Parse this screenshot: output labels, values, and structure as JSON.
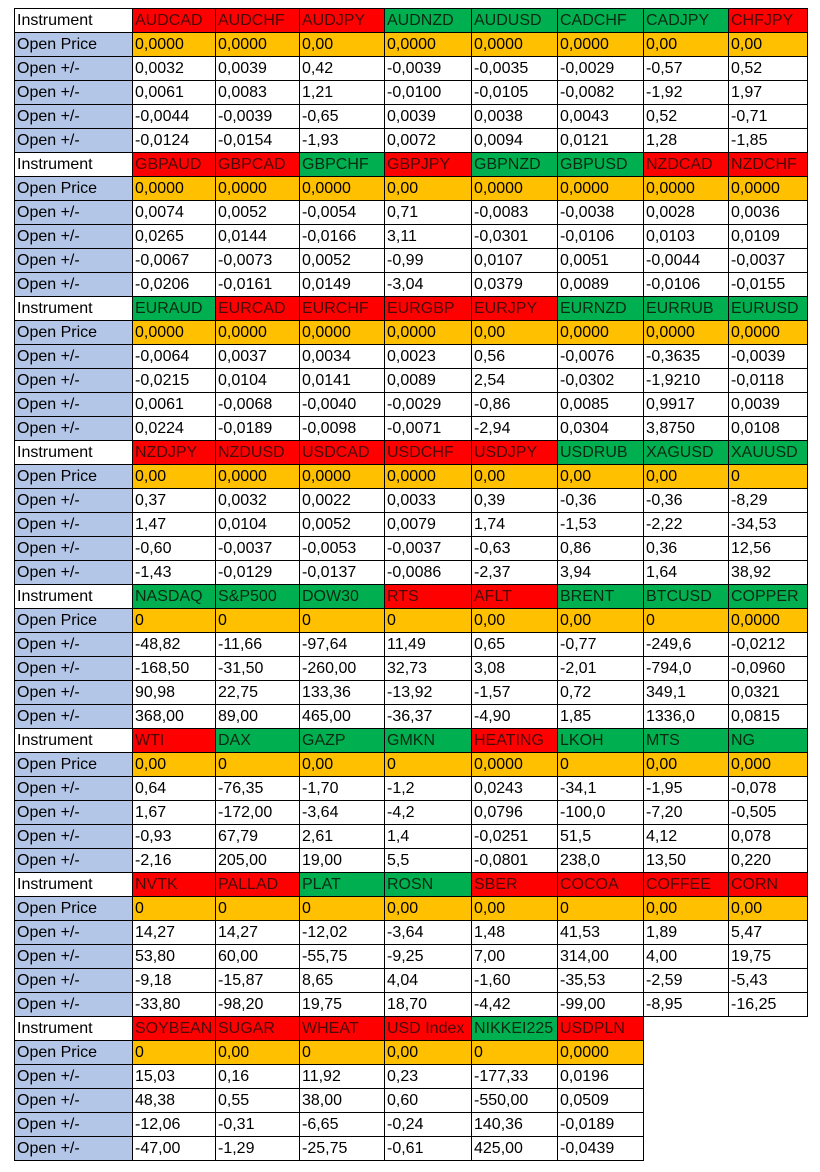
{
  "blocks": [
    {
      "label": "Instrument",
      "instruments": [
        {
          "name": "AUDCAD",
          "color": "#ff0000"
        },
        {
          "name": "AUDCHF",
          "color": "#ff0000"
        },
        {
          "name": "AUDJPY",
          "color": "#ff0000"
        },
        {
          "name": "AUDNZD",
          "color": "#00b050"
        },
        {
          "name": "AUDUSD",
          "color": "#00b050"
        },
        {
          "name": "CADCHF",
          "color": "#00b050"
        },
        {
          "name": "CADJPY",
          "color": "#00b050"
        },
        {
          "name": "CHFJPY",
          "color": "#ff0000"
        }
      ],
      "rows": [
        {
          "label": "Open Price",
          "cells": [
            "0,0000",
            "0,0000",
            "0,00",
            "0,0000",
            "0,0000",
            "0,0000",
            "0,00",
            "0,00"
          ]
        },
        {
          "label": "Open +/-",
          "cells": [
            "0,0032",
            "0,0039",
            "0,42",
            "-0,0039",
            "-0,0035",
            "-0,0029",
            "-0,57",
            "0,52"
          ]
        },
        {
          "label": "Open +/-",
          "cells": [
            "0,0061",
            "0,0083",
            "1,21",
            "-0,0100",
            "-0,0105",
            "-0,0082",
            "-1,92",
            "1,97"
          ]
        },
        {
          "label": "Open +/-",
          "cells": [
            "-0,0044",
            "-0,0039",
            "-0,65",
            "0,0039",
            "0,0038",
            "0,0043",
            "0,52",
            "-0,71"
          ]
        },
        {
          "label": "Open +/-",
          "cells": [
            "-0,0124",
            "-0,0154",
            "-1,93",
            "0,0072",
            "0,0094",
            "0,0121",
            "1,28",
            "-1,85"
          ]
        }
      ]
    },
    {
      "label": "Instrument",
      "instruments": [
        {
          "name": "GBPAUD",
          "color": "#ff0000"
        },
        {
          "name": "GBPCAD",
          "color": "#ff0000"
        },
        {
          "name": "GBPCHF",
          "color": "#00b050"
        },
        {
          "name": "GBPJPY",
          "color": "#ff0000"
        },
        {
          "name": "GBPNZD",
          "color": "#00b050"
        },
        {
          "name": "GBPUSD",
          "color": "#00b050"
        },
        {
          "name": "NZDCAD",
          "color": "#ff0000"
        },
        {
          "name": "NZDCHF",
          "color": "#ff0000"
        }
      ],
      "rows": [
        {
          "label": "Open Price",
          "cells": [
            "0,0000",
            "0,0000",
            "0,0000",
            "0,00",
            "0,0000",
            "0,0000",
            "0,0000",
            "0,0000"
          ]
        },
        {
          "label": "Open +/-",
          "cells": [
            "0,0074",
            "0,0052",
            "-0,0054",
            "0,71",
            "-0,0083",
            "-0,0038",
            "0,0028",
            "0,0036"
          ]
        },
        {
          "label": "Open +/-",
          "cells": [
            "0,0265",
            "0,0144",
            "-0,0166",
            "3,11",
            "-0,0301",
            "-0,0106",
            "0,0103",
            "0,0109"
          ]
        },
        {
          "label": "Open +/-",
          "cells": [
            "-0,0067",
            "-0,0073",
            "0,0052",
            "-0,99",
            "0,0107",
            "0,0051",
            "-0,0044",
            "-0,0037"
          ]
        },
        {
          "label": "Open +/-",
          "cells": [
            "-0,0206",
            "-0,0161",
            "0,0149",
            "-3,04",
            "0,0379",
            "0,0089",
            "-0,0106",
            "-0,0155"
          ]
        }
      ]
    },
    {
      "label": "Instrument",
      "instruments": [
        {
          "name": "EURAUD",
          "color": "#00b050"
        },
        {
          "name": "EURCAD",
          "color": "#ff0000"
        },
        {
          "name": "EURCHF",
          "color": "#ff0000"
        },
        {
          "name": "EURGBP",
          "color": "#ff0000"
        },
        {
          "name": "EURJPY",
          "color": "#ff0000"
        },
        {
          "name": "EURNZD",
          "color": "#00b050"
        },
        {
          "name": "EURRUB",
          "color": "#00b050"
        },
        {
          "name": "EURUSD",
          "color": "#00b050"
        }
      ],
      "rows": [
        {
          "label": "Open Price",
          "cells": [
            "0,0000",
            "0,0000",
            "0,0000",
            "0,0000",
            "0,00",
            "0,0000",
            "0,0000",
            "0,0000"
          ]
        },
        {
          "label": "Open +/-",
          "cells": [
            "-0,0064",
            "0,0037",
            "0,0034",
            "0,0023",
            "0,56",
            "-0,0076",
            "-0,3635",
            "-0,0039"
          ]
        },
        {
          "label": "Open +/-",
          "cells": [
            "-0,0215",
            "0,0104",
            "0,0141",
            "0,0089",
            "2,54",
            "-0,0302",
            "-1,9210",
            "-0,0118"
          ]
        },
        {
          "label": "Open +/-",
          "cells": [
            "0,0061",
            "-0,0068",
            "-0,0040",
            "-0,0029",
            "-0,86",
            "0,0085",
            "0,9917",
            "0,0039"
          ]
        },
        {
          "label": "Open +/-",
          "cells": [
            "0,0224",
            "-0,0189",
            "-0,0098",
            "-0,0071",
            "-2,94",
            "0,0304",
            "3,8750",
            "0,0108"
          ]
        }
      ]
    },
    {
      "label": "Instrument",
      "instruments": [
        {
          "name": "NZDJPY",
          "color": "#ff0000"
        },
        {
          "name": "NZDUSD",
          "color": "#ff0000"
        },
        {
          "name": "USDCAD",
          "color": "#ff0000"
        },
        {
          "name": "USDCHF",
          "color": "#ff0000"
        },
        {
          "name": "USDJPY",
          "color": "#ff0000"
        },
        {
          "name": "USDRUB",
          "color": "#00b050"
        },
        {
          "name": "XAGUSD",
          "color": "#00b050"
        },
        {
          "name": "XAUUSD",
          "color": "#00b050"
        }
      ],
      "rows": [
        {
          "label": "Open Price",
          "cells": [
            "0,00",
            "0,0000",
            "0,0000",
            "0,0000",
            "0,00",
            "0,00",
            "0,00",
            "0"
          ]
        },
        {
          "label": "Open +/-",
          "cells": [
            "0,37",
            "0,0032",
            "0,0022",
            "0,0033",
            "0,39",
            "-0,36",
            "-0,36",
            "-8,29"
          ]
        },
        {
          "label": "Open +/-",
          "cells": [
            "1,47",
            "0,0104",
            "0,0052",
            "0,0079",
            "1,74",
            "-1,53",
            "-2,22",
            "-34,53"
          ]
        },
        {
          "label": "Open +/-",
          "cells": [
            "-0,60",
            "-0,0037",
            "-0,0053",
            "-0,0037",
            "-0,63",
            "0,86",
            "0,36",
            "12,56"
          ]
        },
        {
          "label": "Open +/-",
          "cells": [
            "-1,43",
            "-0,0129",
            "-0,0137",
            "-0,0086",
            "-2,37",
            "3,94",
            "1,64",
            "38,92"
          ]
        }
      ]
    },
    {
      "label": "Instrument",
      "instruments": [
        {
          "name": "NASDAQ",
          "color": "#00b050"
        },
        {
          "name": "S&P500",
          "color": "#00b050"
        },
        {
          "name": "DOW30",
          "color": "#00b050"
        },
        {
          "name": "RTS",
          "color": "#ff0000"
        },
        {
          "name": "AFLT",
          "color": "#ff0000"
        },
        {
          "name": "BRENT",
          "color": "#00b050"
        },
        {
          "name": "BTCUSD",
          "color": "#00b050"
        },
        {
          "name": "COPPER",
          "color": "#00b050"
        }
      ],
      "rows": [
        {
          "label": "Open Price",
          "cells": [
            "0",
            "0",
            "0",
            "0",
            "0,00",
            "0,00",
            "0",
            "0,0000"
          ]
        },
        {
          "label": "Open +/-",
          "cells": [
            "-48,82",
            "-11,66",
            "-97,64",
            "11,49",
            "0,65",
            "-0,77",
            "-249,6",
            "-0,0212"
          ]
        },
        {
          "label": "Open +/-",
          "cells": [
            "-168,50",
            "-31,50",
            "-260,00",
            "32,73",
            "3,08",
            "-2,01",
            "-794,0",
            "-0,0960"
          ]
        },
        {
          "label": "Open +/-",
          "cells": [
            "90,98",
            "22,75",
            "133,36",
            "-13,92",
            "-1,57",
            "0,72",
            "349,1",
            "0,0321"
          ]
        },
        {
          "label": "Open +/-",
          "cells": [
            "368,00",
            "89,00",
            "465,00",
            "-36,37",
            "-4,90",
            "1,85",
            "1336,0",
            "0,0815"
          ]
        }
      ]
    },
    {
      "label": "Instrument",
      "instruments": [
        {
          "name": "WTI",
          "color": "#ff0000"
        },
        {
          "name": "DAX",
          "color": "#00b050"
        },
        {
          "name": "GAZP",
          "color": "#00b050"
        },
        {
          "name": "GMKN",
          "color": "#00b050"
        },
        {
          "name": "HEATING",
          "color": "#ff0000"
        },
        {
          "name": "LKOH",
          "color": "#00b050"
        },
        {
          "name": "MTS",
          "color": "#00b050"
        },
        {
          "name": "NG",
          "color": "#00b050"
        }
      ],
      "rows": [
        {
          "label": "Open Price",
          "cells": [
            "0,00",
            "0",
            "0,00",
            "0",
            "0,0000",
            "0",
            "0,00",
            "0,000"
          ]
        },
        {
          "label": "Open +/-",
          "cells": [
            "0,64",
            "-76,35",
            "-1,70",
            "-1,2",
            "0,0243",
            "-34,1",
            "-1,95",
            "-0,078"
          ]
        },
        {
          "label": "Open +/-",
          "cells": [
            "1,67",
            "-172,00",
            "-3,64",
            "-4,2",
            "0,0796",
            "-100,0",
            "-7,20",
            "-0,505"
          ]
        },
        {
          "label": "Open +/-",
          "cells": [
            "-0,93",
            "67,79",
            "2,61",
            "1,4",
            "-0,0251",
            "51,5",
            "4,12",
            "0,078"
          ]
        },
        {
          "label": "Open +/-",
          "cells": [
            "-2,16",
            "205,00",
            "19,00",
            "5,5",
            "-0,0801",
            "238,0",
            "13,50",
            "0,220"
          ]
        }
      ]
    },
    {
      "label": "Instrument",
      "instruments": [
        {
          "name": "NVTK",
          "color": "#ff0000"
        },
        {
          "name": "PALLAD",
          "color": "#ff0000"
        },
        {
          "name": "PLAT",
          "color": "#00b050"
        },
        {
          "name": "ROSN",
          "color": "#00b050"
        },
        {
          "name": "SBER",
          "color": "#ff0000"
        },
        {
          "name": "COCOA",
          "color": "#ff0000"
        },
        {
          "name": "COFFEE",
          "color": "#ff0000"
        },
        {
          "name": "CORN",
          "color": "#ff0000"
        }
      ],
      "rows": [
        {
          "label": "Open Price",
          "cells": [
            "0",
            "0",
            "0",
            "0,00",
            "0,00",
            "0",
            "0,00",
            "0,00"
          ]
        },
        {
          "label": "Open +/-",
          "cells": [
            "14,27",
            "14,27",
            "-12,02",
            "-3,64",
            "1,48",
            "41,53",
            "1,89",
            "5,47"
          ]
        },
        {
          "label": "Open +/-",
          "cells": [
            "53,80",
            "60,00",
            "-55,75",
            "-9,25",
            "7,00",
            "314,00",
            "4,00",
            "19,75"
          ]
        },
        {
          "label": "Open +/-",
          "cells": [
            "-9,18",
            "-15,87",
            "8,65",
            "4,04",
            "-1,60",
            "-35,53",
            "-2,59",
            "-5,43"
          ]
        },
        {
          "label": "Open +/-",
          "cells": [
            "-33,80",
            "-98,20",
            "19,75",
            "18,70",
            "-4,42",
            "-99,00",
            "-8,95",
            "-16,25"
          ]
        }
      ]
    },
    {
      "label": "Instrument",
      "instruments": [
        {
          "name": "SOYBEAN",
          "color": "#ff0000"
        },
        {
          "name": "SUGAR",
          "color": "#ff0000"
        },
        {
          "name": "WHEAT",
          "color": "#ff0000"
        },
        {
          "name": "USD Index",
          "color": "#ff0000"
        },
        {
          "name": "NIKKEI225",
          "color": "#00b050"
        },
        {
          "name": "USDPLN",
          "color": "#ff0000"
        }
      ],
      "rows": [
        {
          "label": "Open Price",
          "cells": [
            "0",
            "0,00",
            "0",
            "0,00",
            "0",
            "0,0000"
          ]
        },
        {
          "label": "Open +/-",
          "cells": [
            "15,03",
            "0,16",
            "11,92",
            "0,23",
            "-177,33",
            "0,0196"
          ]
        },
        {
          "label": "Open +/-",
          "cells": [
            "48,38",
            "0,55",
            "38,00",
            "0,60",
            "-550,00",
            "0,0509"
          ]
        },
        {
          "label": "Open +/-",
          "cells": [
            "-12,06",
            "-0,31",
            "-6,65",
            "-0,24",
            "140,36",
            "-0,0189"
          ]
        },
        {
          "label": "Open +/-",
          "cells": [
            "-47,00",
            "-1,29",
            "-25,75",
            "-0,61",
            "425,00",
            "-0,0439"
          ]
        }
      ]
    }
  ]
}
